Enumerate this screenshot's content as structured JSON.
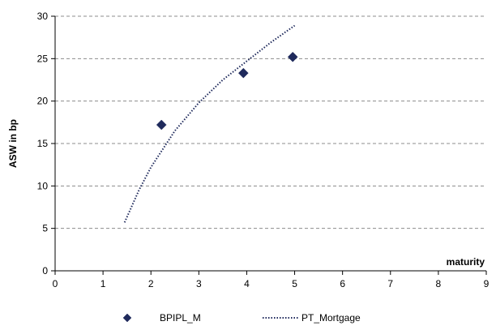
{
  "chart_data": {
    "type": "scatter",
    "title": "",
    "xlabel": "maturity",
    "ylabel": "ASW in bp",
    "xlim": [
      0,
      9
    ],
    "ylim": [
      0,
      30
    ],
    "x_ticks": [
      "0",
      "1",
      "2",
      "3",
      "4",
      "5",
      "6",
      "7",
      "8",
      "9"
    ],
    "y_ticks": [
      "0",
      "5",
      "10",
      "15",
      "20",
      "25",
      "30"
    ],
    "grid": "horizontal-dashed",
    "legend_position": "bottom",
    "series": [
      {
        "name": "BPIPL_M",
        "kind": "scatter",
        "marker": "diamond",
        "color": "#1f2a5c",
        "points": [
          [
            2.22,
            17.2
          ],
          [
            3.93,
            23.3
          ],
          [
            4.96,
            25.2
          ]
        ]
      },
      {
        "name": "PT_Mortgage",
        "kind": "line",
        "style": "dotted",
        "color": "#1f2a5c",
        "points": [
          [
            1.45,
            5.7
          ],
          [
            1.75,
            9.5
          ],
          [
            2.0,
            12.2
          ],
          [
            2.5,
            16.5
          ],
          [
            3.0,
            19.8
          ],
          [
            3.5,
            22.5
          ],
          [
            4.0,
            24.7
          ],
          [
            4.5,
            26.9
          ],
          [
            5.0,
            28.9
          ]
        ]
      }
    ]
  }
}
